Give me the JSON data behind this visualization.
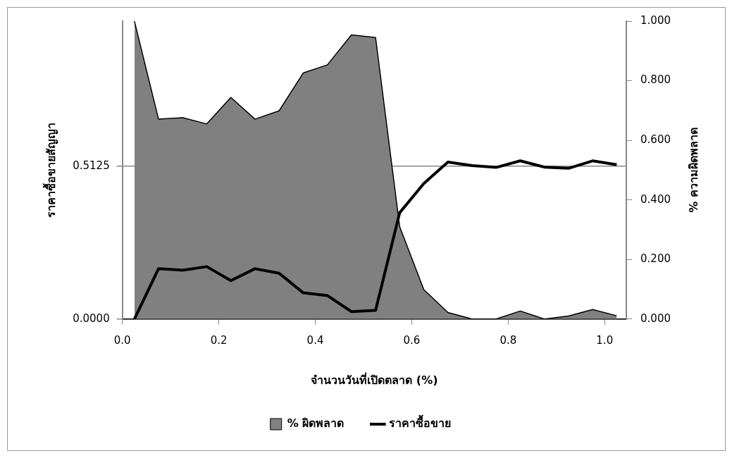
{
  "chart_data": {
    "type": "line",
    "xlabel": "จำนวนวันที่เปิดตลาด (%)",
    "ylabel": "ราคาซื้อขายสัญญา",
    "y2label": "% ความผิดพลาด",
    "x": [
      0.025,
      0.075,
      0.125,
      0.175,
      0.225,
      0.275,
      0.325,
      0.375,
      0.425,
      0.475,
      0.525,
      0.575,
      0.625,
      0.675,
      0.725,
      0.775,
      0.825,
      0.875,
      0.925,
      0.975,
      1.025
    ],
    "series": [
      {
        "name": "% ผิดพลาด",
        "type": "area",
        "axis": "y2",
        "color": "#808080",
        "values": [
          1.0,
          0.671,
          0.676,
          0.655,
          0.744,
          0.671,
          0.699,
          0.826,
          0.853,
          0.954,
          0.945,
          0.31,
          0.099,
          0.022,
          0,
          0,
          0.027,
          0,
          0.01,
          0.032,
          0.011
        ]
      },
      {
        "name": "ราคาซื้อขาย",
        "type": "line",
        "color": "#000000",
        "values": [
          0,
          0.169,
          0.164,
          0.176,
          0.129,
          0.169,
          0.154,
          0.088,
          0.079,
          0.025,
          0.029,
          0.357,
          0.455,
          0.527,
          0.515,
          0.509,
          0.531,
          0.51,
          0.506,
          0.531,
          0.518
        ]
      }
    ],
    "xlim": [
      0,
      1.045
    ],
    "xticks": [
      {
        "value": 0,
        "label": "0.0"
      },
      0.2,
      0.4,
      0.6,
      0.8,
      {
        "value": 1,
        "label": "1.0"
      }
    ],
    "ylim": [
      0,
      1
    ],
    "yticks": [
      {
        "value": 0,
        "label": "0.0000"
      },
      0.5125
    ],
    "y2lim": [
      0,
      1
    ],
    "y2ticks": [
      {
        "value": 0,
        "label": "0.000"
      },
      {
        "value": 0.2,
        "label": "0.200"
      },
      {
        "value": 0.4,
        "label": "0.400"
      },
      {
        "value": 0.6,
        "label": "0.600"
      },
      {
        "value": 0.8,
        "label": "0.800"
      },
      {
        "value": 1,
        "label": "1.000"
      }
    ],
    "grid": "y",
    "legend": "bottom"
  }
}
